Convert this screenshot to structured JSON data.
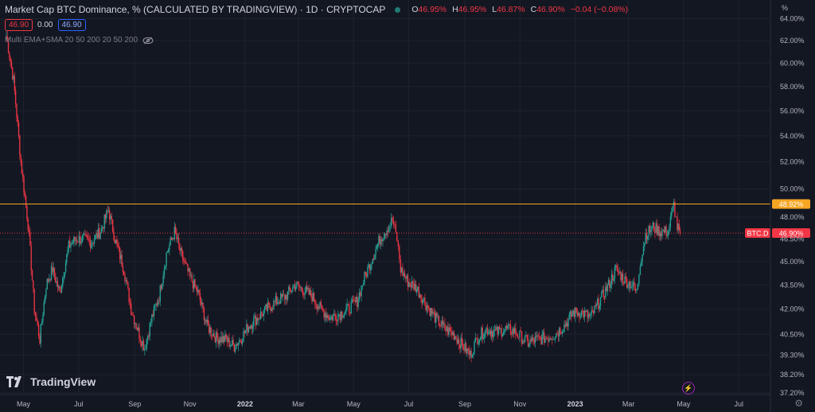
{
  "header": {
    "title": "Market Cap BTC Dominance, % (CALCULATED BY TRADINGVIEW) · 1D · CRYPTOCAP",
    "o_label": "O",
    "o_val": "46.95%",
    "h_label": "H",
    "h_val": "46.95%",
    "l_label": "L",
    "l_val": "46.87%",
    "c_label": "C",
    "c_val": "46.90%",
    "change": "−0.04 (−0.08%)"
  },
  "price_boxes": {
    "sell": "46.90",
    "spread": "0.00",
    "buy": "46.90"
  },
  "indicator": {
    "label": "Multi EMA+SMA 20 50 200 20 50 200"
  },
  "axis": {
    "unit_label": "%"
  },
  "brand": {
    "name": "TradingView"
  },
  "colors": {
    "up": "#26a69a",
    "down": "#f23645",
    "level": "#f5a623",
    "bg": "#131722"
  },
  "icons": {
    "eye": "eye-slash-icon",
    "bolt": "lightning-icon",
    "gear": "gear-icon"
  },
  "chart_data": {
    "type": "candlestick",
    "scale": "log",
    "ylim": [
      37.2,
      65.0
    ],
    "y_ticks": [
      "64.00%",
      "62.00%",
      "60.00%",
      "58.00%",
      "56.00%",
      "54.00%",
      "52.00%",
      "50.00%",
      "48.00%",
      "46.50%",
      "45.00%",
      "43.50%",
      "42.00%",
      "40.50%",
      "39.30%",
      "38.20%",
      "37.20%"
    ],
    "x_ticks": [
      "May",
      "Jul",
      "Sep",
      "Nov",
      "2022",
      "Mar",
      "May",
      "Jul",
      "Sep",
      "Nov",
      "2023",
      "Mar",
      "May",
      "Jul"
    ],
    "x_ticks_bold": [
      "2022",
      "2023"
    ],
    "series": [
      {
        "points": [
          [
            "2021-04-12",
            62.4
          ],
          [
            "2021-04-20",
            58.5
          ],
          [
            "2021-04-28",
            52.0
          ],
          [
            "2021-05-06",
            47.5
          ],
          [
            "2021-05-13",
            42.0
          ],
          [
            "2021-05-19",
            40.2
          ],
          [
            "2021-05-26",
            43.5
          ],
          [
            "2021-06-02",
            44.5
          ],
          [
            "2021-06-10",
            43.0
          ],
          [
            "2021-06-20",
            46.0
          ],
          [
            "2021-06-28",
            46.5
          ],
          [
            "2021-07-05",
            46.5
          ],
          [
            "2021-07-15",
            46.3
          ],
          [
            "2021-07-25",
            47.0
          ],
          [
            "2021-08-03",
            48.5
          ],
          [
            "2021-08-10",
            46.5
          ],
          [
            "2021-08-20",
            44.5
          ],
          [
            "2021-08-28",
            42.0
          ],
          [
            "2021-09-06",
            40.5
          ],
          [
            "2021-09-12",
            39.7
          ],
          [
            "2021-09-20",
            41.5
          ],
          [
            "2021-09-28",
            42.8
          ],
          [
            "2021-10-06",
            45.5
          ],
          [
            "2021-10-15",
            47.0
          ],
          [
            "2021-10-22",
            45.5
          ],
          [
            "2021-11-01",
            44.0
          ],
          [
            "2021-11-10",
            43.0
          ],
          [
            "2021-11-20",
            41.0
          ],
          [
            "2021-11-30",
            40.3
          ],
          [
            "2021-12-10",
            40.2
          ],
          [
            "2021-12-20",
            39.8
          ],
          [
            "2021-12-28",
            40.3
          ],
          [
            "2022-01-05",
            41.0
          ],
          [
            "2022-01-15",
            41.5
          ],
          [
            "2022-01-25",
            42.0
          ],
          [
            "2022-02-05",
            42.5
          ],
          [
            "2022-02-15",
            42.8
          ],
          [
            "2022-02-25",
            43.5
          ],
          [
            "2022-03-06",
            43.2
          ],
          [
            "2022-03-16",
            42.8
          ],
          [
            "2022-03-26",
            42.0
          ],
          [
            "2022-04-05",
            41.5
          ],
          [
            "2022-04-15",
            41.7
          ],
          [
            "2022-04-25",
            42.0
          ],
          [
            "2022-05-05",
            42.5
          ],
          [
            "2022-05-12",
            43.8
          ],
          [
            "2022-05-20",
            45.0
          ],
          [
            "2022-05-30",
            46.5
          ],
          [
            "2022-06-08",
            47.3
          ],
          [
            "2022-06-13",
            47.8
          ],
          [
            "2022-06-18",
            46.5
          ],
          [
            "2022-06-22",
            44.5
          ],
          [
            "2022-06-30",
            43.7
          ],
          [
            "2022-07-10",
            43.3
          ],
          [
            "2022-07-20",
            42.3
          ],
          [
            "2022-07-30",
            41.5
          ],
          [
            "2022-08-10",
            40.8
          ],
          [
            "2022-08-20",
            40.5
          ],
          [
            "2022-08-30",
            39.8
          ],
          [
            "2022-09-07",
            39.3
          ],
          [
            "2022-09-15",
            40.3
          ],
          [
            "2022-09-25",
            40.8
          ],
          [
            "2022-10-05",
            40.6
          ],
          [
            "2022-10-15",
            40.8
          ],
          [
            "2022-10-25",
            40.7
          ],
          [
            "2022-11-03",
            40.3
          ],
          [
            "2022-11-10",
            40.0
          ],
          [
            "2022-11-20",
            40.2
          ],
          [
            "2022-11-30",
            40.3
          ],
          [
            "2022-12-10",
            40.5
          ],
          [
            "2022-12-20",
            41.0
          ],
          [
            "2022-12-30",
            41.8
          ],
          [
            "2023-01-08",
            41.8
          ],
          [
            "2023-01-18",
            41.5
          ],
          [
            "2023-01-28",
            42.5
          ],
          [
            "2023-02-07",
            43.5
          ],
          [
            "2023-02-15",
            44.5
          ],
          [
            "2023-02-25",
            43.8
          ],
          [
            "2023-03-05",
            43.5
          ],
          [
            "2023-03-10",
            43.0
          ],
          [
            "2023-03-14",
            45.0
          ],
          [
            "2023-03-20",
            46.8
          ],
          [
            "2023-03-28",
            47.3
          ],
          [
            "2023-04-05",
            47.0
          ],
          [
            "2023-04-14",
            47.0
          ],
          [
            "2023-04-20",
            48.9
          ],
          [
            "2023-04-24",
            47.3
          ],
          [
            "2023-04-27",
            46.9
          ]
        ]
      }
    ],
    "levels": [
      {
        "label": "48.92%",
        "value": 48.92,
        "color": "#f5a623",
        "style": "solid"
      },
      {
        "label": "46.90%",
        "value": 46.9,
        "color": "#f23645",
        "style": "dotted",
        "tag": "BTC.D"
      }
    ]
  }
}
